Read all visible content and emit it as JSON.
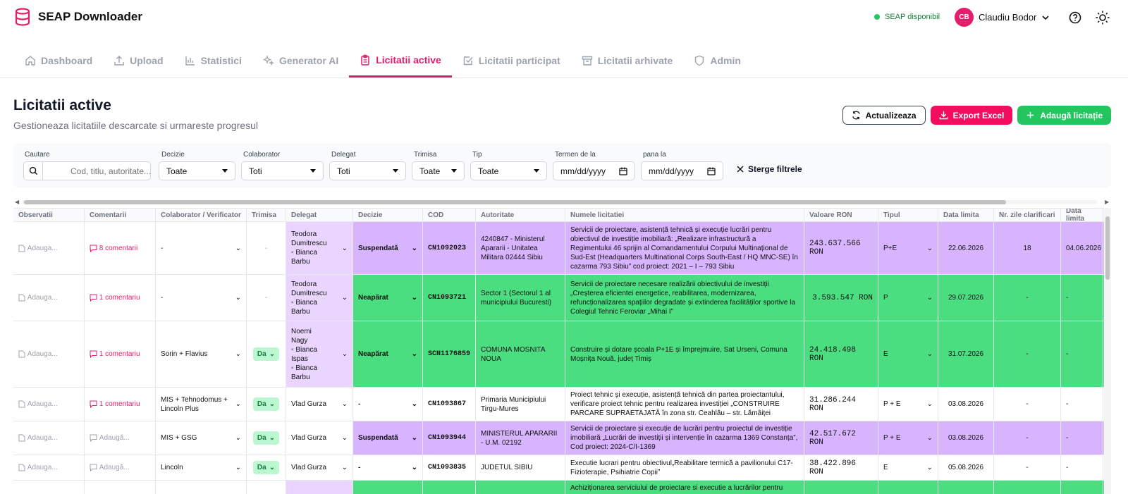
{
  "app": {
    "title": "SEAP Downloader",
    "status": "SEAP disponibil",
    "user_initials": "CB",
    "user_name": "Claudiu Bodor"
  },
  "nav": [
    {
      "label": "Dashboard",
      "icon": "home-icon"
    },
    {
      "label": "Upload",
      "icon": "upload-icon"
    },
    {
      "label": "Statistici",
      "icon": "bar-chart-icon"
    },
    {
      "label": "Generator AI",
      "icon": "sparkles-icon"
    },
    {
      "label": "Licitatii active",
      "icon": "clipboard-icon",
      "active": true
    },
    {
      "label": "Licitatii participat",
      "icon": "check-square-icon"
    },
    {
      "label": "Licitatii arhivate",
      "icon": "archive-icon"
    },
    {
      "label": "Admin",
      "icon": "shield-icon"
    }
  ],
  "page": {
    "title": "Licitatii active",
    "subtitle": "Gestioneaza licitatiile descarcate si urmareste progresul"
  },
  "actions": {
    "refresh": "Actualizeaza",
    "export": "Export Excel",
    "add": "Adaugă licitație"
  },
  "filters": {
    "search_label": "Cautare",
    "search_placeholder": "Cod, titlu, autoritate...",
    "decizie_label": "Decizie",
    "decizie_value": "Toate",
    "colaborator_label": "Colaborator",
    "colaborator_value": "Toti",
    "delegat_label": "Delegat",
    "delegat_value": "Toti",
    "trimisa_label": "Trimisa",
    "trimisa_value": "Toate",
    "tip_label": "Tip",
    "tip_value": "Toate",
    "termen_de_label": "Termen de la",
    "termen_de_value": "mm/dd/yyyy",
    "pana_label": "pana la",
    "pana_value": "mm/dd/yyyy",
    "clear": "Sterge filtrele"
  },
  "table": {
    "headers": [
      "Observatii",
      "Comentarii",
      "Colaborator / Verificator",
      "Trimisa",
      "Delegat",
      "Decizie",
      "COD",
      "Autoritate",
      "Numele licitatiei",
      "Valoare RON",
      "Tipul",
      "Data limita",
      "Nr. zile clarificari",
      "Data limita"
    ],
    "rows": [
      {
        "obs": "Adauga...",
        "com": "8 comentarii",
        "colab": "-",
        "trimisa": "-",
        "delegat": "Teodora\nDumitrescu\n◦ Bianca\nBarbu",
        "decizie": "Suspendată",
        "cod": "CN1092023",
        "autoritate": "4240847 - Ministerul Apararii - Unitatea Militara 02444 Sibiu",
        "titlu": "Servicii de proiectare, asistență tehnică și execuție lucrări pentru obiectivul de investiție imobiliară: „Realizare infrastructură a Regimentului 46 sprijin al Comandamentului Corpului Multinațional de Sud-Est (Headquarters Multinational Corps South-East / HQ MNC-SE) în cazarma 793 Sibiu” cod proiect: 2021 – I – 793 Sibiu",
        "valoare": "243.637.566 RON",
        "tip": "P+E",
        "data": "22.06.2026",
        "zile": "18",
        "data2": "04.06.2026",
        "color": "purple"
      },
      {
        "obs": "Adauga...",
        "com": "1 comentariu",
        "colab": "-",
        "trimisa": "-",
        "delegat": "Teodora\nDumitrescu\n◦ Bianca\nBarbu",
        "decizie": "Neapărat",
        "cod": "CN1093721",
        "autoritate": "Sector 1 (Sectorul 1 al municipiului Bucuresti)",
        "titlu": "Servicii de proiectare necesare realizării obiectivului de investiții „Creșterea eficientei energetice, reabilitarea, modernizarea, refuncționalizarea spațiilor degradate și extinderea facilităților sportive la Colegiul Tehnic Feroviar „Mihai I”",
        "valoare": "3.593.547 RON",
        "tip": "P",
        "data": "29.07.2026",
        "zile": "-",
        "data2": "-",
        "color": "green"
      },
      {
        "obs": "Adauga...",
        "com": "1 comentariu",
        "colab": "Sorin + Flavius",
        "trimisa": "Da",
        "delegat": "Noemi\nNagy\n◦ Bianca\nIspas\n◦ Bianca\nBarbu",
        "decizie": "Neapărat",
        "cod": "SCN1176859",
        "autoritate": "COMUNA MOSNITA NOUA",
        "titlu": "Construire și dotare școala P+1E și împrejmuire, Sat Urseni, Comuna Moșnița Nouă, județ Timiș",
        "valoare": "24.418.498 RON",
        "tip": "E",
        "data": "31.07.2026",
        "zile": "-",
        "data2": "-",
        "color": "green"
      },
      {
        "obs": "Adauga...",
        "com": "1 comentariu",
        "colab": "MIS + Tehnodomus + Lincoln Plus",
        "trimisa": "Da",
        "delegat": "Vlad Gurza",
        "decizie": "-",
        "cod": "CN1093867",
        "autoritate": "Primaria Municipiului Tirgu-Mures",
        "titlu": "Proiect tehnic și execuție, asistență tehnică din partea proiectantului, verificare proiect tehnic pentru realizarea investiției „CONSTRUIRE PARCARE SUPRAETAJATĂ în zona str. Ceahlău – str. Lămâiței",
        "valoare": "31.286.244 RON",
        "tip": "P + E",
        "data": "03.08.2026",
        "zile": "-",
        "data2": "-",
        "color": "white"
      },
      {
        "obs": "Adauga...",
        "com": "Adaugă...",
        "colab": "MIS + GSG",
        "trimisa": "Da",
        "delegat": "Vlad Gurza",
        "decizie": "Suspendată",
        "cod": "CN1093944",
        "autoritate": "MINISTERUL APARARII - U.M. 02192",
        "titlu": "Servicii de proiectare și execuție de lucrări pentru proiectul de investiție imobiliară „Lucrări de investiții și intervenție în cazarma 1369 Constanța”, Cod proiect: 2024-C/I-1369",
        "valoare": "42.517.672 RON",
        "tip": "P + E",
        "data": "03.08.2026",
        "zile": "-",
        "data2": "-",
        "color": "purple"
      },
      {
        "obs": "Adauga...",
        "com": "Adaugă...",
        "colab": "Lincoln",
        "trimisa": "Da",
        "delegat": "Vlad Gurza",
        "decizie": "-",
        "cod": "CN1093835",
        "autoritate": "JUDETUL SIBIU",
        "titlu": "Executie lucrari pentru obiectivul„Reabilitare termică a pavilionului C17-Fizioterapie, Psihiatrie Copii”",
        "valoare": "38.422.896 RON",
        "tip": "E",
        "data": "05.08.2026",
        "zile": "-",
        "data2": "-",
        "color": "white"
      },
      {
        "obs": "",
        "com": "",
        "colab": "",
        "trimisa": "",
        "delegat": "",
        "decizie": "",
        "cod": "",
        "autoritate": "",
        "titlu": "Achiziționarea serviciului de proiectare si executie a lucrărilor pentru",
        "valoare": "",
        "tip": "",
        "data": "",
        "zile": "",
        "data2": "",
        "color": "green"
      }
    ]
  }
}
